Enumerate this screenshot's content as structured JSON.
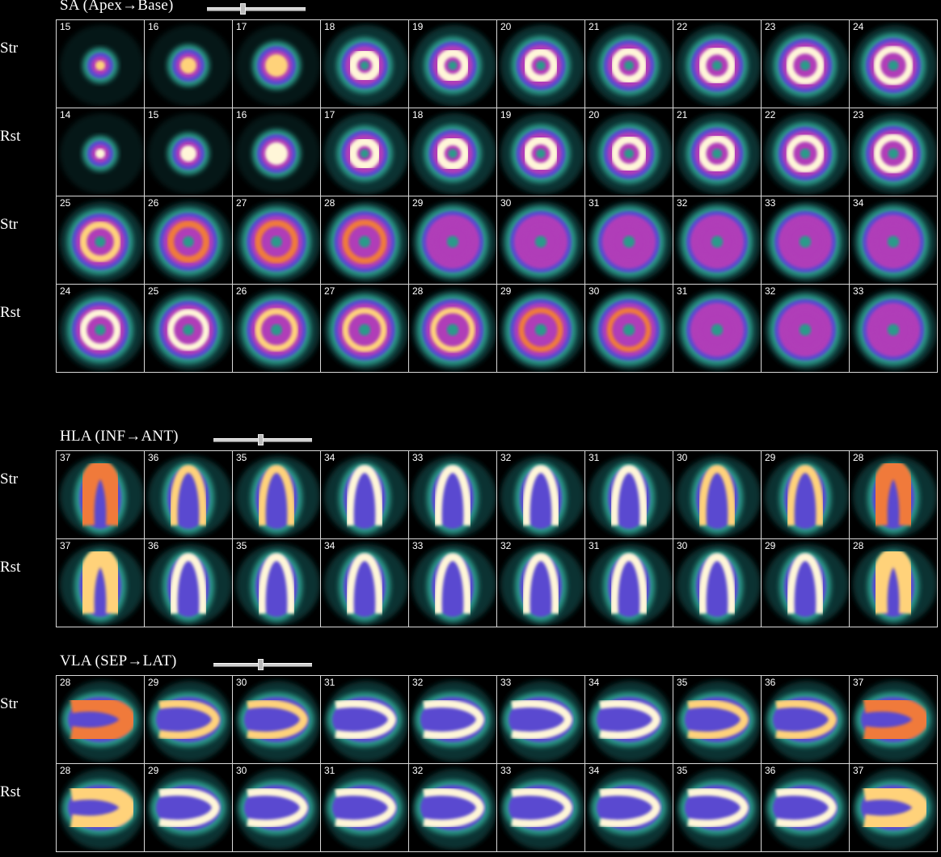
{
  "sections": [
    {
      "title": "SA (Apex→Base)",
      "view": "sa",
      "slider_position": 0.36,
      "rows": [
        {
          "label": "Str",
          "slices": [
            "15",
            "16",
            "17",
            "18",
            "19",
            "20",
            "21",
            "22",
            "23",
            "24"
          ]
        },
        {
          "label": "Rst",
          "slices": [
            "14",
            "15",
            "16",
            "17",
            "18",
            "19",
            "20",
            "21",
            "22",
            "23"
          ]
        },
        {
          "label": "Str",
          "slices": [
            "25",
            "26",
            "27",
            "28",
            "29",
            "30",
            "31",
            "32",
            "33",
            "34"
          ]
        },
        {
          "label": "Rst",
          "slices": [
            "24",
            "25",
            "26",
            "27",
            "28",
            "29",
            "30",
            "31",
            "32",
            "33"
          ]
        }
      ]
    },
    {
      "title": "HLA (INF→ANT)",
      "view": "hla",
      "slider_position": 0.48,
      "rows": [
        {
          "label": "Str",
          "slices": [
            "37",
            "36",
            "35",
            "34",
            "33",
            "32",
            "31",
            "30",
            "29",
            "28"
          ]
        },
        {
          "label": "Rst",
          "slices": [
            "37",
            "36",
            "35",
            "34",
            "33",
            "32",
            "31",
            "30",
            "29",
            "28"
          ]
        }
      ]
    },
    {
      "title": "VLA (SEP→LAT)",
      "view": "vla",
      "slider_position": 0.48,
      "rows": [
        {
          "label": "Str",
          "slices": [
            "28",
            "29",
            "30",
            "31",
            "32",
            "33",
            "34",
            "35",
            "36",
            "37"
          ]
        },
        {
          "label": "Rst",
          "slices": [
            "28",
            "29",
            "30",
            "31",
            "32",
            "33",
            "34",
            "35",
            "36",
            "37"
          ]
        }
      ]
    }
  ],
  "colors": {
    "background": "#000000",
    "panel_border": "#d8d8d8",
    "scale": [
      "#0f3a3a",
      "#2a9a8a",
      "#5a4ad0",
      "#b03cb8",
      "#f07a3a",
      "#ffd27a",
      "#fff6d8"
    ]
  }
}
